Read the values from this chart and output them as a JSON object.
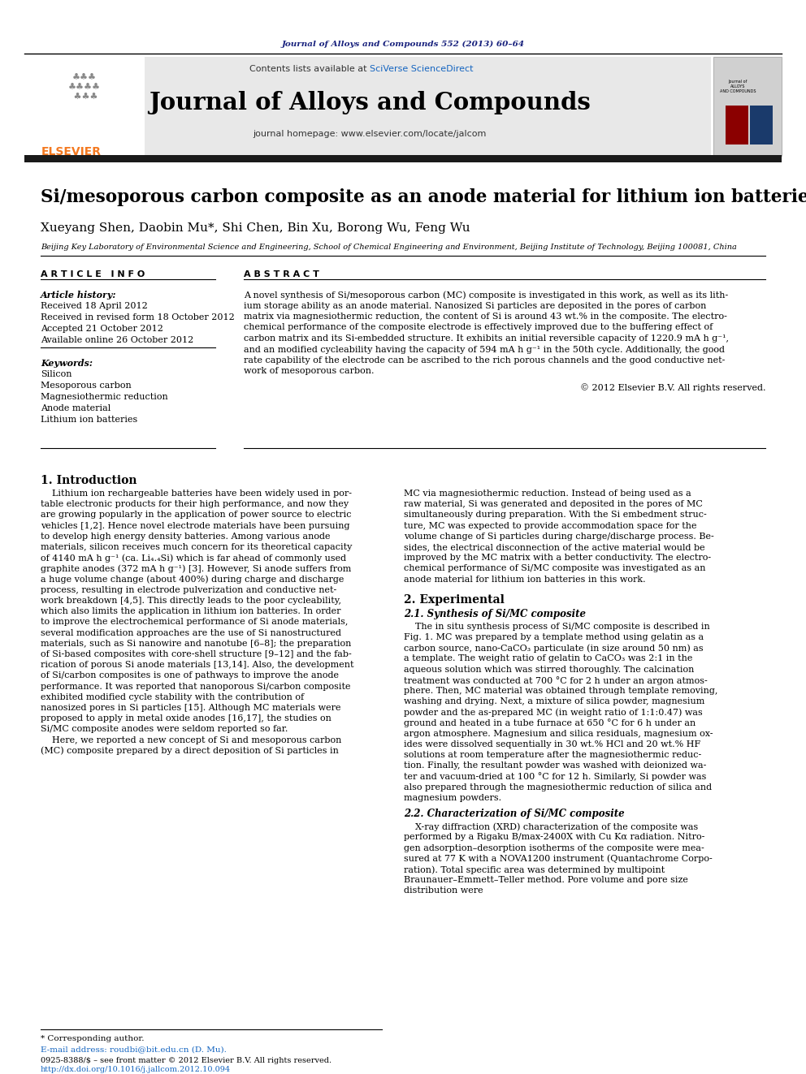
{
  "page_bg": "#ffffff",
  "journal_ref_color": "#1a237e",
  "journal_ref": "Journal of Alloys and Compounds 552 (2013) 60–64",
  "header_bg": "#e8e8e8",
  "black_bar_color": "#1a1a1a",
  "elsevier_color": "#f47920",
  "contents_text": "Contents lists available at ",
  "sciverse_color": "#1565c0",
  "sciverse_text": "SciVerse ScienceDirect",
  "journal_name": "Journal of Alloys and Compounds",
  "homepage_text": "journal homepage: www.elsevier.com/locate/jalcom",
  "paper_title": "Si/mesoporous carbon composite as an anode material for lithium ion batteries",
  "authors": "Xueyang Shen, Daobin Mu*, Shi Chen, Bin Xu, Borong Wu, Feng Wu",
  "affiliation": "Beijing Key Laboratory of Environmental Science and Engineering, School of Chemical Engineering and Environment, Beijing Institute of Technology, Beijing 100081, China",
  "article_info_header": "A R T I C L E   I N F O",
  "abstract_header": "A B S T R A C T",
  "article_history_label": "Article history:",
  "received1": "Received 18 April 2012",
  "received2": "Received in revised form 18 October 2012",
  "accepted": "Accepted 21 October 2012",
  "available": "Available online 26 October 2012",
  "keywords_label": "Keywords:",
  "keywords": [
    "Silicon",
    "Mesoporous carbon",
    "Magnesiothermic reduction",
    "Anode material",
    "Lithium ion batteries"
  ],
  "copyright_text": "© 2012 Elsevier B.V. All rights reserved.",
  "section1_header": "1. Introduction",
  "section2_header": "2. Experimental",
  "section2_sub": "2.1. Synthesis of Si/MC composite",
  "section22_sub": "2.2. Characterization of Si/MC composite",
  "footnote1": "* Corresponding author.",
  "footnote2": "E-mail address: roudbi@bit.edu.cn (D. Mu).",
  "footnote3": "0925-8388/$ – see front matter © 2012 Elsevier B.V. All rights reserved.",
  "footnote4": "http://dx.doi.org/10.1016/j.jallcom.2012.10.094"
}
